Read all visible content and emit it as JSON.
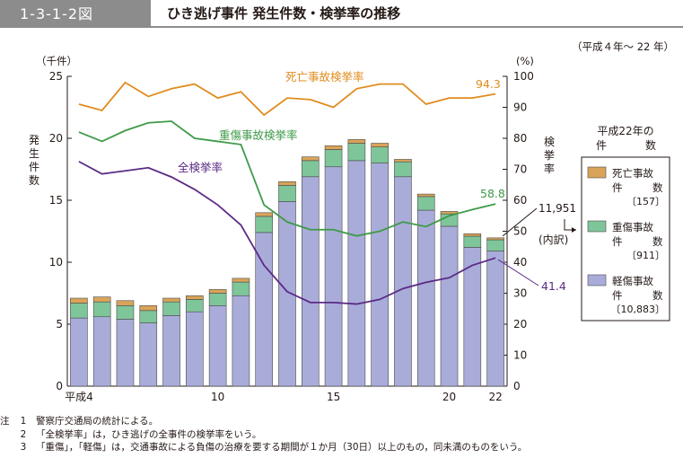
{
  "header": {
    "figure_number": "1-3-1-2図",
    "title": "ひき逃げ事件 発生件数・検挙率の推移",
    "period": "（平成４年～ 22 年）"
  },
  "chart_data": {
    "type": "bar",
    "left_axis": {
      "unit": "（千件）",
      "label": "発生件数",
      "ylim": [
        0,
        25
      ],
      "ticks": [
        "0",
        "5",
        "10",
        "15",
        "20",
        "25"
      ]
    },
    "right_axis": {
      "unit": "(%)",
      "label": "検挙率",
      "ylim": [
        0,
        100
      ],
      "ticks": [
        "0",
        "10",
        "20",
        "30",
        "40",
        "50",
        "60",
        "70",
        "80",
        "90",
        "100"
      ]
    },
    "x": [
      4,
      5,
      6,
      7,
      8,
      9,
      10,
      11,
      12,
      13,
      14,
      15,
      16,
      17,
      18,
      19,
      20,
      21,
      22
    ],
    "x_tick_labels": {
      "0": "平成4",
      "6": "10",
      "11": "15",
      "16": "20",
      "18": "22"
    },
    "stacked_bars": [
      {
        "name": "軽傷事故件数",
        "color": "#a9acd9",
        "values": [
          5.5,
          5.6,
          5.4,
          5.1,
          5.7,
          6.0,
          6.5,
          7.3,
          12.4,
          14.9,
          16.9,
          17.7,
          18.2,
          18.0,
          16.9,
          14.2,
          12.9,
          11.2,
          10.9
        ]
      },
      {
        "name": "重傷事故件数",
        "color": "#7fc59a",
        "values": [
          1.2,
          1.2,
          1.1,
          1.0,
          1.1,
          1.0,
          1.0,
          1.1,
          1.3,
          1.3,
          1.3,
          1.4,
          1.4,
          1.3,
          1.2,
          1.1,
          1.0,
          0.9,
          0.911
        ]
      },
      {
        "name": "死亡事故件数",
        "color": "#d9a45a",
        "values": [
          0.4,
          0.4,
          0.4,
          0.4,
          0.3,
          0.3,
          0.3,
          0.3,
          0.3,
          0.3,
          0.3,
          0.3,
          0.3,
          0.3,
          0.2,
          0.2,
          0.2,
          0.2,
          0.157
        ]
      }
    ],
    "lines": [
      {
        "name": "死亡事故検挙率",
        "color": "#e08c1e",
        "values": [
          91.0,
          89.0,
          98.0,
          93.5,
          96.0,
          97.5,
          93.0,
          95.0,
          87.5,
          93.0,
          92.5,
          90.0,
          96.0,
          97.5,
          97.5,
          91.0,
          93.0,
          93.0,
          94.3
        ]
      },
      {
        "name": "重傷事故検挙率",
        "color": "#3e9a48",
        "values": [
          82.0,
          79.0,
          82.5,
          85.0,
          85.5,
          80.0,
          79.0,
          78.0,
          58.5,
          53.0,
          50.5,
          50.5,
          48.5,
          50.0,
          53.0,
          51.5,
          55.0,
          57.0,
          58.8
        ]
      },
      {
        "name": "全検挙率",
        "color": "#5b2a86",
        "values": [
          72.5,
          68.5,
          69.5,
          70.5,
          67.5,
          63.5,
          58.5,
          52.0,
          39.0,
          30.5,
          27.0,
          27.0,
          26.5,
          28.0,
          31.5,
          33.5,
          35.0,
          39.0,
          41.4
        ]
      }
    ],
    "end_labels": {
      "fatal_rate": "94.3",
      "serious_rate": "58.8",
      "total_rate": "41.4",
      "total_cases": "11,951",
      "breakdown": "(内訳)"
    },
    "legend": {
      "title_line1": "平成22年の",
      "title_line2_a": "件",
      "title_line2_b": "数",
      "items": [
        {
          "line1": "死亡事故",
          "line2_a": "件",
          "line2_b": "数",
          "count": "〔157〕",
          "color": "#d9a45a"
        },
        {
          "line1": "重傷事故",
          "line2_a": "件",
          "line2_b": "数",
          "count": "〔911〕",
          "color": "#7fc59a"
        },
        {
          "line1": "軽傷事故",
          "line2_a": "件",
          "line2_b": "数",
          "count": "〔10,883〕",
          "color": "#a9acd9"
        }
      ]
    }
  },
  "notes": {
    "lead": "注",
    "items": [
      {
        "num": "1",
        "text": "警察庁交通局の統計による。"
      },
      {
        "num": "2",
        "text": "「全検挙率」は，ひき逃げの全事件の検挙率をいう。"
      },
      {
        "num": "3",
        "text": "「重傷」，「軽傷」は，交通事故による負傷の治療を要する期間が１か月（30日）以上のもの，同未満のものをいう。"
      }
    ]
  }
}
